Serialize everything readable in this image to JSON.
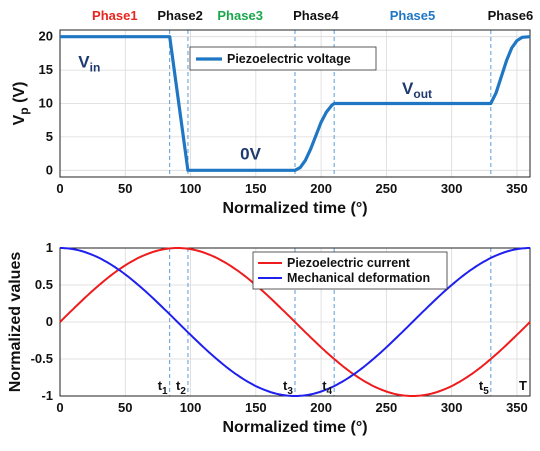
{
  "chart_data": [
    {
      "type": "line",
      "ylabel_main": "V",
      "ylabel_sub": "p",
      "ylabel_unit": " (V)",
      "xlabel": "Normalized time (°)",
      "xlim": [
        0,
        360
      ],
      "ylim": [
        -1,
        21
      ],
      "xticks": [
        0,
        50,
        100,
        150,
        200,
        250,
        300,
        350
      ],
      "yticks": [
        0,
        5,
        10,
        15,
        20
      ],
      "grid": true,
      "legend_position": "top-center",
      "series": [
        {
          "name": "Piezoelectric voltage",
          "color": "#1f77c4",
          "points": [
            [
              0,
              20
            ],
            [
              84,
              20
            ],
            [
              98,
              0
            ],
            [
              180,
              0
            ],
            [
              184,
              0.4
            ],
            [
              188,
              1.5
            ],
            [
              192,
              3.2
            ],
            [
              196,
              5.2
            ],
            [
              200,
              7.2
            ],
            [
              204,
              8.7
            ],
            [
              208,
              9.7
            ],
            [
              210,
              10
            ],
            [
              330,
              10
            ],
            [
              334,
              11.6
            ],
            [
              338,
              14
            ],
            [
              342,
              16.4
            ],
            [
              346,
              18.3
            ],
            [
              350,
              19.4
            ],
            [
              354,
              19.9
            ],
            [
              360,
              20
            ]
          ]
        }
      ],
      "phases": [
        {
          "label": "Phase1",
          "x": 42,
          "color": "#e8261f"
        },
        {
          "label": "Phase2",
          "x": 92,
          "color": "#111111"
        },
        {
          "label": "Phase3",
          "x": 138,
          "color": "#1aa64b"
        },
        {
          "label": "Phase4",
          "x": 196,
          "color": "#111111"
        },
        {
          "label": "Phase5",
          "x": 270,
          "color": "#1f77c4"
        },
        {
          "label": "Phase6",
          "x": 345,
          "color": "#111111"
        }
      ],
      "annotations": [
        {
          "main": "V",
          "sub": "in",
          "x": 14,
          "y": 15.4
        },
        {
          "main": "0V",
          "sub": "",
          "x": 138,
          "y": 1.6
        },
        {
          "main": "V",
          "sub": "out",
          "x": 262,
          "y": 11.4
        }
      ],
      "dashed_lines_x": [
        84,
        98,
        180,
        210,
        330,
        360
      ]
    },
    {
      "type": "line",
      "ylabel": "Normalized values",
      "xlabel": "Normalized time (°)",
      "xlim": [
        0,
        360
      ],
      "ylim": [
        -1,
        1
      ],
      "xticks": [
        0,
        50,
        100,
        150,
        200,
        250,
        300,
        350
      ],
      "yticks": [
        -1,
        -0.5,
        0,
        0.5,
        1
      ],
      "grid": true,
      "legend_position": "top-center",
      "series": [
        {
          "name": "Piezoelectric current",
          "color": "#ee1c1c",
          "function": "sin"
        },
        {
          "name": "Mechanical deformation",
          "color": "#1f1fee",
          "function": "cos"
        }
      ],
      "time_labels": [
        {
          "main": "t",
          "sub": "1",
          "x": 84
        },
        {
          "main": "t",
          "sub": "2",
          "x": 98
        },
        {
          "main": "t",
          "sub": "3",
          "x": 180
        },
        {
          "main": "t",
          "sub": "4",
          "x": 210
        },
        {
          "main": "t",
          "sub": "5",
          "x": 330
        },
        {
          "main": "T",
          "sub": "",
          "x": 360
        }
      ],
      "dashed_lines_x": [
        84,
        98,
        180,
        210,
        330,
        360
      ]
    }
  ]
}
